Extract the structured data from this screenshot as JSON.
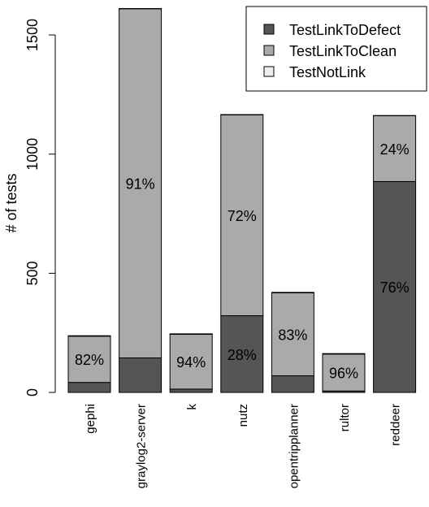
{
  "chart_data": {
    "type": "bar",
    "stacked": true,
    "ylabel": "# of tests",
    "xlabel": "",
    "ylim": [
      0,
      1600
    ],
    "yticks": [
      0,
      500,
      1000,
      1500
    ],
    "categories": [
      "gephi",
      "graylog2-server",
      "k",
      "nutz",
      "opentripplanner",
      "rultor",
      "reddeer"
    ],
    "series": [
      {
        "name": "TestLinkToDefect",
        "color": "#555555",
        "values": [
          42,
          145,
          14,
          322,
          70,
          6,
          885
        ]
      },
      {
        "name": "TestLinkToClean",
        "color": "#aaaaaa",
        "values": [
          194,
          1465,
          230,
          843,
          348,
          155,
          276
        ]
      },
      {
        "name": "TestNotLink",
        "color": "#eeeeee",
        "values": [
          2,
          1,
          2,
          1,
          2,
          2,
          1
        ]
      }
    ],
    "bar_labels": [
      "82%",
      "91%",
      "94%",
      "72%",
      "83%",
      "96%",
      "24%"
    ],
    "bar_label_series": [
      1,
      1,
      1,
      1,
      1,
      1,
      1
    ],
    "secondary_labels": [
      {
        "category": "nutz",
        "text": "28%",
        "series": 0
      },
      {
        "category": "reddeer",
        "text": "76%",
        "series": 0
      }
    ],
    "legend_position": "top-right",
    "grid": false
  }
}
